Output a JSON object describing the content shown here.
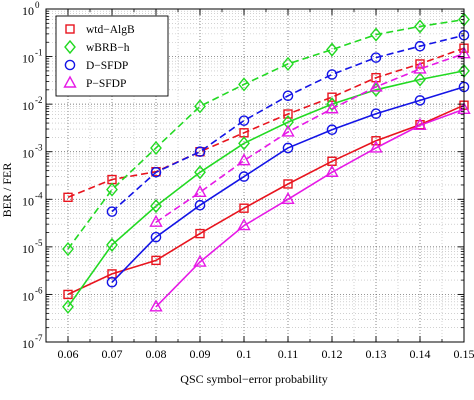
{
  "chart_data": {
    "type": "line",
    "xlabel": "QSC symbol−error probability",
    "ylabel": "BER / FER",
    "xlim": [
      0.055,
      0.15
    ],
    "ylim_log10": [
      -7,
      0
    ],
    "y_scale": "log",
    "grid": "dotted major and minor",
    "legend_position": "top-left",
    "x_ticks": [
      "0.06",
      "0.07",
      "0.08",
      "0.09",
      "0.1",
      "0.11",
      "0.12",
      "0.13",
      "0.14",
      "0.15"
    ],
    "x_tick_values": [
      0.06,
      0.07,
      0.08,
      0.09,
      0.1,
      0.11,
      0.12,
      0.13,
      0.14,
      0.15
    ],
    "y_ticks": [
      {
        "value": 1e-07,
        "base": "10",
        "exp": "-7"
      },
      {
        "value": 1e-06,
        "base": "10",
        "exp": "-6"
      },
      {
        "value": 1e-05,
        "base": "10",
        "exp": "-5"
      },
      {
        "value": 0.0001,
        "base": "10",
        "exp": "-4"
      },
      {
        "value": 0.001,
        "base": "10",
        "exp": "-3"
      },
      {
        "value": 0.01,
        "base": "10",
        "exp": "-2"
      },
      {
        "value": 0.1,
        "base": "10",
        "exp": "-1"
      },
      {
        "value": 1,
        "base": "10",
        "exp": "0"
      }
    ],
    "legend": [
      {
        "name": "wtd−AlgB",
        "color": "#e8141e",
        "marker": "square"
      },
      {
        "name": "wBRB−h",
        "color": "#22d922",
        "marker": "diamond"
      },
      {
        "name": "D−SFDP",
        "color": "#1414e6",
        "marker": "circle"
      },
      {
        "name": "P−SFDP",
        "color": "#e619e6",
        "marker": "triangle"
      }
    ],
    "series": [
      {
        "legend_index": 0,
        "curve": "FER",
        "dash": true,
        "color": "#e8141e",
        "marker": "square",
        "x": [
          0.06,
          0.07,
          0.08,
          0.09,
          0.1,
          0.11,
          0.12,
          0.13,
          0.14,
          0.15
        ],
        "y": [
          0.00011,
          0.00026,
          0.00038,
          0.001,
          0.0025,
          0.0062,
          0.014,
          0.036,
          0.07,
          0.15
        ]
      },
      {
        "legend_index": 0,
        "curve": "BER",
        "dash": false,
        "color": "#e8141e",
        "marker": "square",
        "x": [
          0.06,
          0.07,
          0.08,
          0.09,
          0.1,
          0.11,
          0.12,
          0.13,
          0.14,
          0.15
        ],
        "y": [
          1e-06,
          2.7e-06,
          5.2e-06,
          1.9e-05,
          6.5e-05,
          0.00021,
          0.00063,
          0.0017,
          0.0037,
          0.0095
        ]
      },
      {
        "legend_index": 1,
        "curve": "FER",
        "dash": true,
        "color": "#22d922",
        "marker": "diamond",
        "x": [
          0.06,
          0.07,
          0.08,
          0.09,
          0.1,
          0.11,
          0.12,
          0.13,
          0.14,
          0.15
        ],
        "y": [
          9e-06,
          0.00016,
          0.0012,
          0.009,
          0.026,
          0.07,
          0.14,
          0.29,
          0.43,
          0.6
        ]
      },
      {
        "legend_index": 1,
        "curve": "BER",
        "dash": false,
        "color": "#22d922",
        "marker": "diamond",
        "x": [
          0.06,
          0.07,
          0.08,
          0.09,
          0.1,
          0.11,
          0.12,
          0.13,
          0.14,
          0.15
        ],
        "y": [
          5.5e-07,
          1.1e-05,
          7.2e-05,
          0.00037,
          0.0015,
          0.0042,
          0.01,
          0.02,
          0.033,
          0.05
        ]
      },
      {
        "legend_index": 2,
        "curve": "FER",
        "dash": true,
        "color": "#1414e6",
        "marker": "circle",
        "x": [
          0.07,
          0.08,
          0.09,
          0.1,
          0.11,
          0.12,
          0.13,
          0.14,
          0.15
        ],
        "y": [
          5.5e-05,
          0.00037,
          0.001,
          0.0045,
          0.015,
          0.042,
          0.095,
          0.165,
          0.28
        ]
      },
      {
        "legend_index": 2,
        "curve": "BER",
        "dash": false,
        "color": "#1414e6",
        "marker": "circle",
        "x": [
          0.07,
          0.08,
          0.09,
          0.1,
          0.11,
          0.12,
          0.13,
          0.14,
          0.15
        ],
        "y": [
          1.8e-06,
          1.6e-05,
          7.5e-05,
          0.0003,
          0.0012,
          0.0029,
          0.0063,
          0.012,
          0.023
        ]
      },
      {
        "legend_index": 3,
        "curve": "FER",
        "dash": true,
        "color": "#e619e6",
        "marker": "triangle",
        "x": [
          0.08,
          0.09,
          0.1,
          0.11,
          0.12,
          0.13,
          0.14,
          0.15
        ],
        "y": [
          3.3e-05,
          0.00014,
          0.00065,
          0.0026,
          0.008,
          0.023,
          0.055,
          0.115
        ]
      },
      {
        "legend_index": 3,
        "curve": "BER",
        "dash": false,
        "color": "#e619e6",
        "marker": "triangle",
        "x": [
          0.08,
          0.09,
          0.1,
          0.11,
          0.12,
          0.13,
          0.14,
          0.15
        ],
        "y": [
          5.5e-07,
          4.8e-06,
          2.8e-05,
          0.0001,
          0.00037,
          0.0012,
          0.0036,
          0.0078
        ]
      }
    ]
  }
}
